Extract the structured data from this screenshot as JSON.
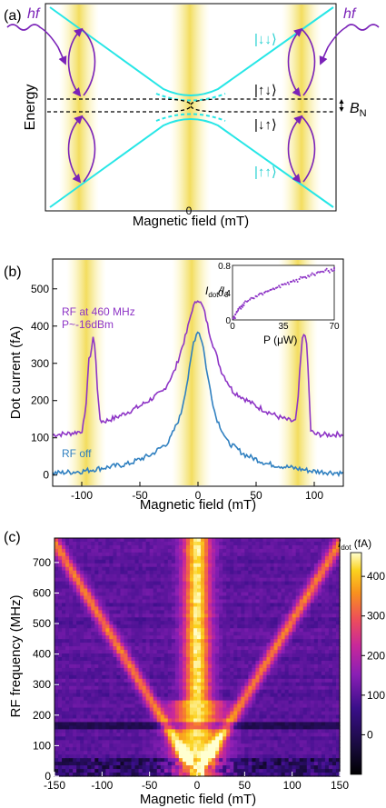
{
  "panel_a": {
    "label": "(a)",
    "hf_left": "hf",
    "hf_right": "hf",
    "ylabel": "Energy",
    "xlabel": "Magnetic field (mT)",
    "x_tick": "0",
    "state_top": "|↓↓⟩",
    "state_mid_upper": "|↑↓⟩",
    "state_mid_lower": "|↓↑⟩",
    "state_bottom": "|↑↑⟩",
    "bn_label": "B",
    "bn_sub": "N",
    "colors": {
      "cyan": "#26e6e6",
      "purple": "#7a22b8",
      "band": "#f3e27a"
    }
  },
  "panel_b": {
    "label": "(b)",
    "ylabel": "Dot current (fA)",
    "xlabel": "Magnetic field (mT)",
    "rf_on_label_1": "RF at 460 MHz",
    "rf_on_label_2": "P~-16dBm",
    "rf_off_label": "RF off",
    "inset_ylabel_main": "I",
    "inset_ylabel_sub1": "dot",
    "inset_ylabel_mid": "/I",
    "inset_ylabel_sub2": "0",
    "inset_xlabel": "P (μW)"
  },
  "panel_c": {
    "label": "(c)",
    "ylabel": "RF frequency (MHz)",
    "xlabel": "Magnetic field (mT)",
    "colorbar_label_main": "I",
    "colorbar_label_sub": "dot",
    "colorbar_label_unit": " (fA)"
  },
  "chart_data": [
    {
      "type": "line",
      "panel": "(a)",
      "xlabel": "Magnetic field (mT)",
      "ylabel": "Energy",
      "x_ticks": [
        "0"
      ],
      "series": [
        {
          "name": "|↓↓⟩",
          "x": [
            -1,
            1
          ],
          "y": [
            1,
            1
          ]
        },
        {
          "name": "|↑↑⟩",
          "x": [
            -1,
            1
          ],
          "y": [
            -1,
            -1
          ]
        }
      ]
    },
    {
      "type": "line",
      "panel": "(b)",
      "xlabel": "Magnetic field (mT)",
      "ylabel": "Dot current (fA)",
      "xlim": [
        -125,
        125
      ],
      "ylim": [
        -30,
        580
      ],
      "x_ticks": [
        -100,
        -50,
        0,
        50,
        100
      ],
      "y_ticks": [
        0,
        100,
        200,
        300,
        400,
        500
      ],
      "series": [
        {
          "name": "RF at 460 MHz",
          "color": "#8e35c6",
          "x": [
            -125,
            -110,
            -100,
            -97,
            -94,
            -92,
            -90,
            -88,
            -86,
            -84,
            -80,
            -70,
            -50,
            -30,
            -20,
            -10,
            -5,
            0,
            5,
            10,
            20,
            30,
            50,
            70,
            80,
            84,
            86,
            88,
            90,
            92,
            94,
            97,
            100,
            110,
            125
          ],
          "y": [
            108,
            112,
            118,
            160,
            305,
            330,
            375,
            320,
            200,
            145,
            145,
            155,
            185,
            225,
            280,
            380,
            445,
            475,
            445,
            380,
            280,
            225,
            185,
            155,
            145,
            145,
            200,
            300,
            370,
            385,
            330,
            120,
            110,
            108,
            110
          ]
        },
        {
          "name": "RF off",
          "color": "#3080c0",
          "x": [
            -125,
            -100,
            -80,
            -60,
            -40,
            -25,
            -15,
            -8,
            -4,
            0,
            4,
            8,
            15,
            25,
            40,
            60,
            80,
            100,
            125
          ],
          "y": [
            5,
            10,
            20,
            30,
            55,
            90,
            160,
            270,
            355,
            390,
            355,
            270,
            160,
            90,
            55,
            30,
            20,
            10,
            5
          ]
        }
      ]
    },
    {
      "type": "scatter",
      "panel": "(b) inset",
      "xlabel": "P (μW)",
      "ylabel": "Idot/I0",
      "xlim": [
        0,
        70
      ],
      "ylim": [
        0,
        0.8
      ],
      "x_ticks": [
        0,
        35,
        70
      ],
      "y_ticks": [
        0,
        0.4,
        0.8
      ],
      "points": [
        [
          0.5,
          0.02
        ],
        [
          1,
          0.05
        ],
        [
          2,
          0.08
        ],
        [
          3,
          0.12
        ],
        [
          4,
          0.16
        ],
        [
          5,
          0.18
        ],
        [
          6,
          0.2
        ],
        [
          7,
          0.22
        ],
        [
          8,
          0.25
        ],
        [
          10,
          0.27
        ],
        [
          12,
          0.3
        ],
        [
          14,
          0.32
        ],
        [
          16,
          0.35
        ],
        [
          18,
          0.37
        ],
        [
          20,
          0.39
        ],
        [
          22,
          0.4
        ],
        [
          24,
          0.42
        ],
        [
          26,
          0.44
        ],
        [
          28,
          0.46
        ],
        [
          30,
          0.47
        ],
        [
          32,
          0.5
        ],
        [
          34,
          0.52
        ],
        [
          36,
          0.53
        ],
        [
          38,
          0.55
        ],
        [
          40,
          0.56
        ],
        [
          42,
          0.58
        ],
        [
          44,
          0.59
        ],
        [
          46,
          0.6
        ],
        [
          48,
          0.62
        ],
        [
          50,
          0.63
        ],
        [
          52,
          0.65
        ],
        [
          54,
          0.66
        ],
        [
          56,
          0.67
        ],
        [
          58,
          0.69
        ],
        [
          60,
          0.7
        ],
        [
          62,
          0.71
        ],
        [
          64,
          0.73
        ],
        [
          66,
          0.72
        ],
        [
          68,
          0.74
        ],
        [
          70,
          0.76
        ]
      ]
    },
    {
      "type": "heatmap",
      "panel": "(c)",
      "xlabel": "Magnetic field (mT)",
      "ylabel": "RF frequency (MHz)",
      "xlim": [
        -150,
        150
      ],
      "ylim": [
        0,
        780
      ],
      "x_ticks": [
        -150,
        -100,
        -50,
        0,
        50,
        100,
        150
      ],
      "y_ticks": [
        0,
        100,
        200,
        300,
        400,
        500,
        600,
        700
      ],
      "colorbar_ticks": [
        0,
        100,
        200,
        300,
        400
      ],
      "colorbar_range": [
        -100,
        460
      ],
      "features": {
        "center_line_field": 0,
        "v_slope_mHz_per_mT": 5.1,
        "horizontal_line_MHz": 165
      }
    }
  ]
}
